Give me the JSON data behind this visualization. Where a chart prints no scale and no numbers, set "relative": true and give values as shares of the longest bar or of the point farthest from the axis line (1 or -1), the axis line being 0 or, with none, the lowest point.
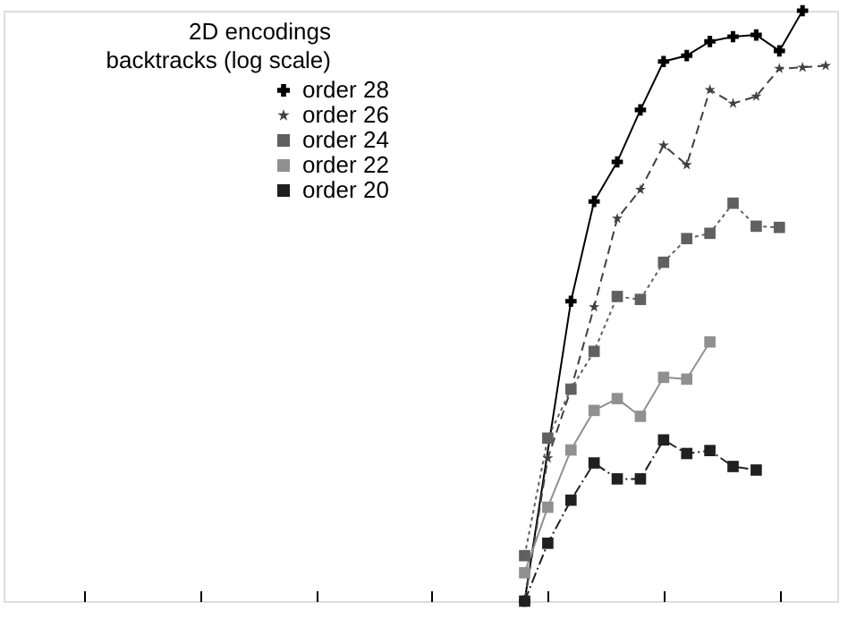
{
  "chart_data": {
    "type": "line",
    "title": "2D encodings",
    "subtitle": "backtracks (log scale)",
    "relative": true,
    "tick_labels": false,
    "grid": false,
    "legend": "top",
    "categories": [
      null,
      null,
      null,
      null,
      null,
      null,
      null,
      null,
      null,
      null,
      null,
      null,
      null,
      null,
      null,
      null,
      null,
      null,
      null,
      null,
      null,
      null,
      null,
      null,
      null,
      null,
      null,
      null,
      null,
      null,
      null,
      null,
      null,
      null,
      null,
      null
    ],
    "series": [
      {
        "name": "order 28",
        "color": "#000000",
        "marker": "cross",
        "line_style": "solid",
        "values": [
          null,
          null,
          null,
          null,
          null,
          null,
          null,
          null,
          null,
          null,
          null,
          null,
          null,
          null,
          null,
          null,
          null,
          null,
          null,
          null,
          null,
          null,
          0,
          null,
          0.508,
          0.677,
          0.744,
          0.832,
          0.914,
          0.924,
          0.948,
          0.956,
          0.959,
          0.932,
          1,
          null
        ]
      },
      {
        "name": "order 26",
        "color": "#404040",
        "marker": "star",
        "line_style": "dashed",
        "values": [
          null,
          null,
          null,
          null,
          null,
          null,
          null,
          null,
          null,
          null,
          null,
          null,
          null,
          null,
          null,
          null,
          null,
          null,
          null,
          null,
          null,
          null,
          0,
          0.242,
          0.359,
          0.498,
          0.648,
          0.697,
          0.772,
          0.739,
          0.866,
          0.843,
          0.855,
          0.902,
          0.904,
          0.907
        ]
      },
      {
        "name": "order 24",
        "color": "#606060",
        "marker": "square",
        "line_style": "dotted",
        "values": [
          null,
          null,
          null,
          null,
          null,
          null,
          null,
          null,
          null,
          null,
          null,
          null,
          null,
          null,
          null,
          null,
          null,
          null,
          null,
          null,
          null,
          null,
          0.077,
          0.276,
          0.359,
          0.423,
          0.516,
          0.511,
          0.574,
          0.614,
          0.623,
          0.674,
          0.635,
          0.633,
          null,
          null
        ]
      },
      {
        "name": "order 22",
        "color": "#909090",
        "marker": "square",
        "line_style": "solid",
        "values": [
          null,
          null,
          null,
          null,
          null,
          null,
          null,
          null,
          null,
          null,
          null,
          null,
          null,
          null,
          null,
          null,
          null,
          null,
          null,
          null,
          null,
          null,
          0.048,
          0.159,
          0.256,
          0.323,
          0.343,
          0.313,
          0.379,
          0.376,
          0.439,
          null,
          null,
          null,
          null,
          null
        ]
      },
      {
        "name": "order 20",
        "color": "#202020",
        "marker": "square",
        "line_style": "dashdot",
        "values": [
          null,
          null,
          null,
          null,
          null,
          null,
          null,
          null,
          null,
          null,
          null,
          null,
          null,
          null,
          null,
          null,
          null,
          null,
          null,
          null,
          null,
          null,
          0,
          0.098,
          0.171,
          0.234,
          0.207,
          0.207,
          0.273,
          0.25,
          0.255,
          0.228,
          0.222,
          null,
          null,
          null
        ]
      }
    ]
  }
}
